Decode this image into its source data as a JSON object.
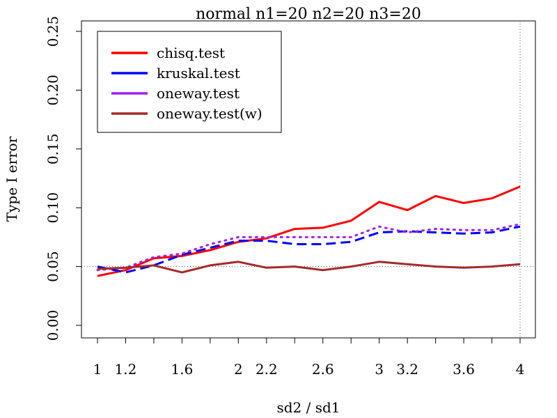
{
  "chart_data": {
    "type": "line",
    "title": "normal n1=20 n2=20 n3=20",
    "xlabel": "sd2 / sd1",
    "ylabel": "Type I error",
    "xlim": [
      1,
      4
    ],
    "ylim": [
      0,
      0.25
    ],
    "x_ticks": [
      1,
      1.2,
      1.6,
      2,
      2.2,
      2.6,
      3,
      3.2,
      3.6,
      4
    ],
    "x_tick_labels": [
      "1",
      "1.2",
      "1.6",
      "2",
      "2.2",
      "2.6",
      "3",
      "3.2",
      "3.6",
      "4"
    ],
    "y_ticks": [
      0,
      0.05,
      0.1,
      0.15,
      0.2,
      0.25
    ],
    "y_tick_labels": [
      "0.00",
      "0.05",
      "0.10",
      "0.15",
      "0.20",
      "0.25"
    ],
    "reference_lines": {
      "horizontal": 0.05,
      "vertical": 4
    },
    "grid": false,
    "legend_position": "top-left",
    "x": [
      1,
      1.2,
      1.4,
      1.6,
      1.8,
      2,
      2.2,
      2.4,
      2.6,
      2.8,
      3,
      3.2,
      3.4,
      3.6,
      3.8,
      4
    ],
    "series": [
      {
        "name": "chisq.test",
        "color": "#ff0000",
        "dash": "solid",
        "values": [
          0.042,
          0.047,
          0.057,
          0.059,
          0.064,
          0.071,
          0.074,
          0.082,
          0.083,
          0.089,
          0.105,
          0.098,
          0.11,
          0.104,
          0.108,
          0.118
        ]
      },
      {
        "name": "kruskal.test",
        "color": "#0000ff",
        "dash": "dashed",
        "values": [
          0.05,
          0.045,
          0.051,
          0.06,
          0.066,
          0.072,
          0.072,
          0.069,
          0.069,
          0.071,
          0.079,
          0.08,
          0.079,
          0.078,
          0.079,
          0.084
        ]
      },
      {
        "name": "oneway.test",
        "color": "#a020f0",
        "dash": "dotted",
        "values": [
          0.047,
          0.049,
          0.058,
          0.061,
          0.069,
          0.075,
          0.075,
          0.075,
          0.075,
          0.075,
          0.084,
          0.079,
          0.082,
          0.081,
          0.081,
          0.086
        ]
      },
      {
        "name": "oneway.test(w)",
        "color": "#a52a2a",
        "dash": "solid",
        "values": [
          0.048,
          0.049,
          0.051,
          0.045,
          0.051,
          0.054,
          0.049,
          0.05,
          0.047,
          0.05,
          0.054,
          0.052,
          0.05,
          0.049,
          0.05,
          0.052
        ]
      }
    ]
  }
}
